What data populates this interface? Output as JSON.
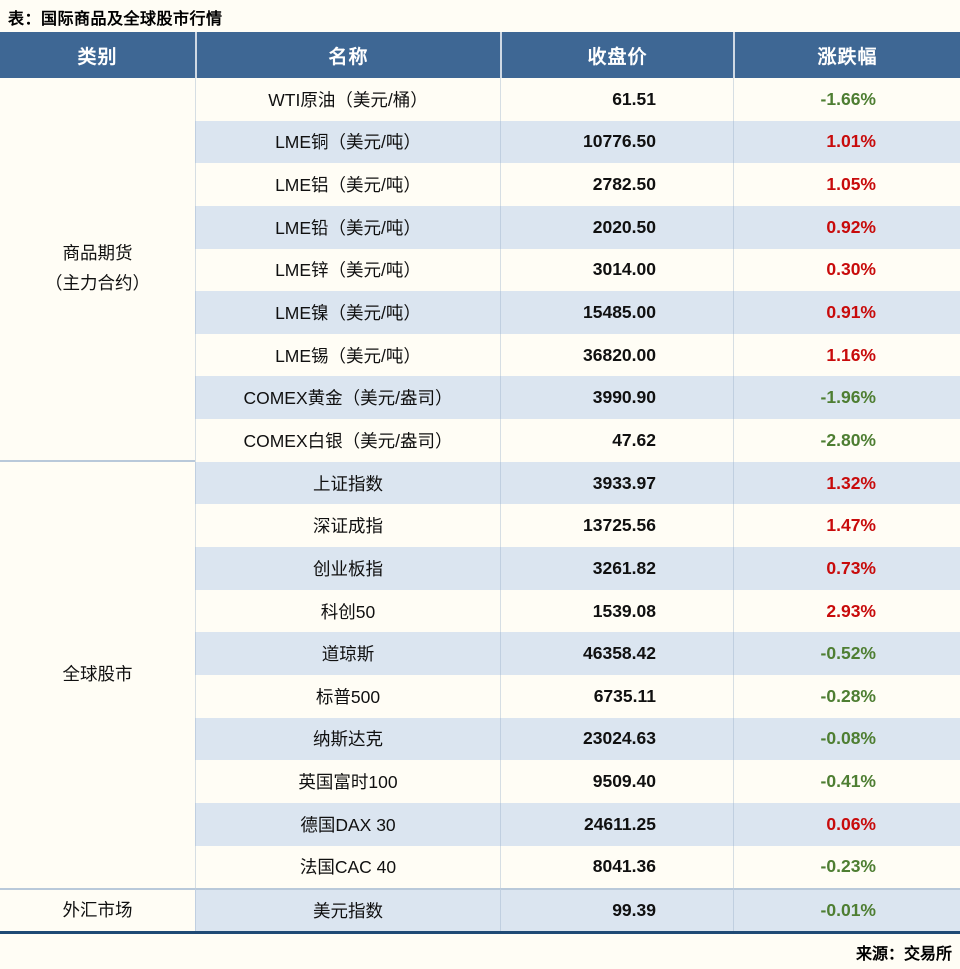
{
  "colors": {
    "header_bg": "#3e6794",
    "stripe_bg": "#dbe5f0",
    "paper_bg": "#fffdf5",
    "up_red": "#c80b0b",
    "down_green": "#4e7e32",
    "table_bottom_border": "#1f4a75"
  },
  "chart_data": {
    "type": "table",
    "title": "表：国际商品及全球股市行情",
    "source": "来源：交易所",
    "columns": [
      "类别",
      "名称",
      "收盘价",
      "涨跌幅"
    ],
    "sections": [
      {
        "category_lines": [
          "商品期货",
          "（主力合约）"
        ],
        "rows": [
          {
            "name": "WTI原油（美元/桶）",
            "close": "61.51",
            "change": "-1.66%",
            "direction": "down"
          },
          {
            "name": "LME铜（美元/吨）",
            "close": "10776.50",
            "change": "1.01%",
            "direction": "up"
          },
          {
            "name": "LME铝（美元/吨）",
            "close": "2782.50",
            "change": "1.05%",
            "direction": "up"
          },
          {
            "name": "LME铅（美元/吨）",
            "close": "2020.50",
            "change": "0.92%",
            "direction": "up"
          },
          {
            "name": "LME锌（美元/吨）",
            "close": "3014.00",
            "change": "0.30%",
            "direction": "up"
          },
          {
            "name": "LME镍（美元/吨）",
            "close": "15485.00",
            "change": "0.91%",
            "direction": "up"
          },
          {
            "name": "LME锡（美元/吨）",
            "close": "36820.00",
            "change": "1.16%",
            "direction": "up"
          },
          {
            "name": "COMEX黄金（美元/盎司）",
            "close": "3990.90",
            "change": "-1.96%",
            "direction": "down"
          },
          {
            "name": "COMEX白银（美元/盎司）",
            "close": "47.62",
            "change": "-2.80%",
            "direction": "down"
          }
        ]
      },
      {
        "category_lines": [
          "全球股市"
        ],
        "rows": [
          {
            "name": "上证指数",
            "close": "3933.97",
            "change": "1.32%",
            "direction": "up"
          },
          {
            "name": "深证成指",
            "close": "13725.56",
            "change": "1.47%",
            "direction": "up"
          },
          {
            "name": "创业板指",
            "close": "3261.82",
            "change": "0.73%",
            "direction": "up"
          },
          {
            "name": "科创50",
            "close": "1539.08",
            "change": "2.93%",
            "direction": "up"
          },
          {
            "name": "道琼斯",
            "close": "46358.42",
            "change": "-0.52%",
            "direction": "down"
          },
          {
            "name": "标普500",
            "close": "6735.11",
            "change": "-0.28%",
            "direction": "down"
          },
          {
            "name": "纳斯达克",
            "close": "23024.63",
            "change": "-0.08%",
            "direction": "down"
          },
          {
            "name": "英国富时100",
            "close": "9509.40",
            "change": "-0.41%",
            "direction": "down"
          },
          {
            "name": "德国DAX 30",
            "close": "24611.25",
            "change": "0.06%",
            "direction": "up"
          },
          {
            "name": "法国CAC 40",
            "close": "8041.36",
            "change": "-0.23%",
            "direction": "down"
          }
        ]
      },
      {
        "category_lines": [
          "外汇市场"
        ],
        "rows": [
          {
            "name": "美元指数",
            "close": "99.39",
            "change": "-0.01%",
            "direction": "down"
          }
        ]
      }
    ]
  }
}
